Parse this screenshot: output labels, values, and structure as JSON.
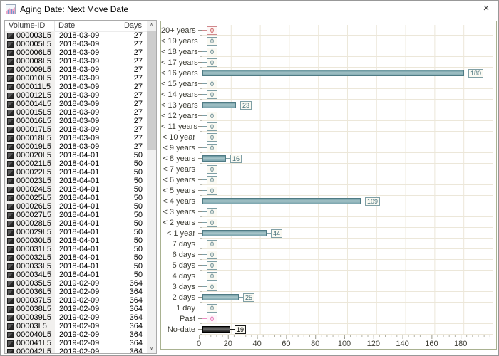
{
  "window": {
    "title": "Aging Date: Next Move Date",
    "close_glyph": "×",
    "icon": "bar-chart-icon"
  },
  "table": {
    "columns": [
      "Volume-ID",
      "Date",
      "Days"
    ],
    "sort_glyph": "∨",
    "scroll_up_glyph": "∧",
    "scroll_down_glyph": "∨",
    "row_icon": "tape-cartridge-icon",
    "rows": [
      [
        "000003L5",
        "2018-03-09",
        "27"
      ],
      [
        "000005L5",
        "2018-03-09",
        "27"
      ],
      [
        "000006L5",
        "2018-03-09",
        "27"
      ],
      [
        "000008L5",
        "2018-03-09",
        "27"
      ],
      [
        "000009L5",
        "2018-03-09",
        "27"
      ],
      [
        "000010L5",
        "2018-03-09",
        "27"
      ],
      [
        "000011L5",
        "2018-03-09",
        "27"
      ],
      [
        "000012L5",
        "2018-03-09",
        "27"
      ],
      [
        "000014L5",
        "2018-03-09",
        "27"
      ],
      [
        "000015L5",
        "2018-03-09",
        "27"
      ],
      [
        "000016L5",
        "2018-03-09",
        "27"
      ],
      [
        "000017L5",
        "2018-03-09",
        "27"
      ],
      [
        "000018L5",
        "2018-03-09",
        "27"
      ],
      [
        "000019L5",
        "2018-03-09",
        "27"
      ],
      [
        "000020L5",
        "2018-04-01",
        "50"
      ],
      [
        "000021L5",
        "2018-04-01",
        "50"
      ],
      [
        "000022L5",
        "2018-04-01",
        "50"
      ],
      [
        "000023L5",
        "2018-04-01",
        "50"
      ],
      [
        "000024L5",
        "2018-04-01",
        "50"
      ],
      [
        "000025L5",
        "2018-04-01",
        "50"
      ],
      [
        "000026L5",
        "2018-04-01",
        "50"
      ],
      [
        "000027L5",
        "2018-04-01",
        "50"
      ],
      [
        "000028L5",
        "2018-04-01",
        "50"
      ],
      [
        "000029L5",
        "2018-04-01",
        "50"
      ],
      [
        "000030L5",
        "2018-04-01",
        "50"
      ],
      [
        "000031L5",
        "2018-04-01",
        "50"
      ],
      [
        "000032L5",
        "2018-04-01",
        "50"
      ],
      [
        "000033L5",
        "2018-04-01",
        "50"
      ],
      [
        "000034L5",
        "2018-04-01",
        "50"
      ],
      [
        "000035L5",
        "2019-02-09",
        "364"
      ],
      [
        "000036L5",
        "2019-02-09",
        "364"
      ],
      [
        "000037L5",
        "2019-02-09",
        "364"
      ],
      [
        "000038L5",
        "2019-02-09",
        "364"
      ],
      [
        "000039L5",
        "2019-02-09",
        "364"
      ],
      [
        "00003L5",
        "2019-02-09",
        "364"
      ],
      [
        "000040L5",
        "2019-02-09",
        "364"
      ],
      [
        "000041L5",
        "2019-02-09",
        "364"
      ],
      [
        "000042L5",
        "2019-02-09",
        "364"
      ]
    ]
  },
  "chart_data": {
    "type": "bar",
    "orientation": "horizontal",
    "title": "",
    "xlabel": "",
    "ylabel": "",
    "grid": true,
    "xlim": [
      0,
      200
    ],
    "x_ticks": [
      0,
      20,
      40,
      60,
      80,
      100,
      120,
      140,
      160,
      180
    ],
    "categories": [
      "20+ years",
      "< 19 years",
      "< 18 years",
      "< 17 years",
      "< 16 years",
      "< 15 years",
      "< 14 years",
      "< 13 years",
      "< 12 years",
      "< 11 years",
      "< 10 year",
      "< 9 years",
      "< 8 years",
      "< 7 years",
      "< 6 years",
      "< 5 years",
      "< 4 years",
      "< 3 years",
      "< 2 years",
      "< 1 year",
      "7 days",
      "6 days",
      "5 days",
      "4 days",
      "3 days",
      "2 days",
      "1 day",
      "Past",
      "No-date"
    ],
    "values": [
      0,
      0,
      0,
      0,
      180,
      0,
      0,
      23,
      0,
      0,
      0,
      0,
      16,
      0,
      0,
      0,
      109,
      0,
      0,
      44,
      0,
      0,
      0,
      0,
      0,
      25,
      0,
      0,
      19
    ],
    "styles": [
      "red",
      "teal",
      "teal",
      "teal",
      "teal",
      "teal",
      "teal",
      "teal",
      "teal",
      "teal",
      "teal",
      "teal",
      "teal",
      "teal",
      "teal",
      "teal",
      "teal",
      "teal",
      "teal",
      "teal",
      "teal",
      "teal",
      "teal",
      "teal",
      "teal",
      "teal",
      "teal",
      "pink",
      "dark"
    ],
    "colors": {
      "bar": "#7ba5ad",
      "bar_border": "#4f7b84",
      "value_text": "#47727b",
      "zero_red": "#c03a3d",
      "zero_pink": "#e04ea5",
      "nodate_bar": "#2e2e2e",
      "gridline": "#ece7d9",
      "panel_border": "#a9b291"
    }
  }
}
